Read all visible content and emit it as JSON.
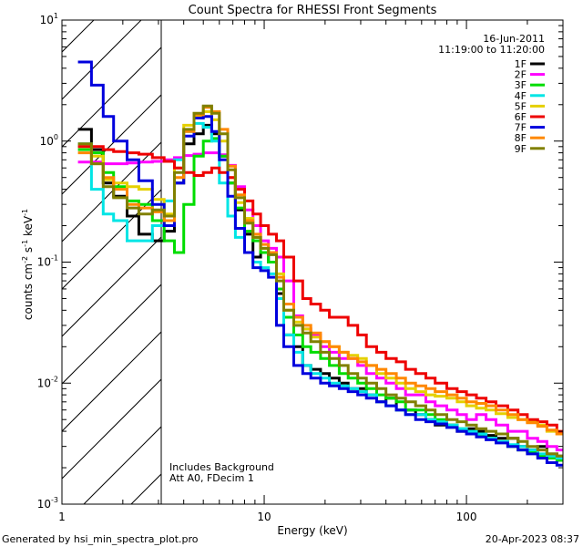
{
  "chart_data": {
    "type": "line",
    "title": "Count Spectra for RHESSI Front Segments",
    "xlabel": "Energy (keV)",
    "ylabel": "counts cm",
    "ylabel_sup1": "-2",
    "ylabel_mid": " s",
    "ylabel_sup2": "-1",
    "ylabel_end": " keV",
    "ylabel_sup3": "-1",
    "x_scale": "log",
    "y_scale": "log",
    "xlim": [
      1,
      300
    ],
    "ylim": [
      0.001,
      10
    ],
    "x_ticks": [
      {
        "value": 1,
        "label": "1"
      },
      {
        "value": 10,
        "label": "10"
      },
      {
        "value": 100,
        "label": "100"
      }
    ],
    "y_ticks": [
      {
        "value": 0.001,
        "mant": "10",
        "exp": "-3"
      },
      {
        "value": 0.01,
        "mant": "10",
        "exp": "-2"
      },
      {
        "value": 0.1,
        "mant": "10",
        "exp": "-1"
      },
      {
        "value": 1,
        "mant": "10",
        "exp": "0"
      },
      {
        "value": 10,
        "mant": "10",
        "exp": "1"
      }
    ],
    "hatched_region": [
      1,
      3
    ],
    "date": "16-Jun-2011",
    "time_range": "11:19:00 to 11:20:00",
    "annotations": [
      "Includes Background",
      "Att A0, FDecim 1"
    ],
    "energy_bins": [
      1.2,
      1.4,
      1.6,
      1.8,
      2.1,
      2.4,
      2.8,
      3.2,
      3.6,
      4.0,
      4.5,
      5.0,
      5.5,
      6.0,
      6.6,
      7.2,
      8.0,
      8.8,
      9.6,
      10.5,
      11.5,
      12.5,
      14,
      15.5,
      17,
      19,
      21,
      23.5,
      26,
      29,
      32,
      36,
      40,
      45,
      50,
      56,
      63,
      70,
      80,
      90,
      100,
      112,
      125,
      140,
      160,
      180,
      200,
      225,
      250,
      280,
      300
    ],
    "series": [
      {
        "name": "1F",
        "color": "#000000",
        "values": [
          1.25,
          0.85,
          0.45,
          0.35,
          0.24,
          0.17,
          0.15,
          0.18,
          0.45,
          0.95,
          1.15,
          1.35,
          1.15,
          0.75,
          0.45,
          0.27,
          0.17,
          0.11,
          0.12,
          0.1,
          0.055,
          0.025,
          0.02,
          0.014,
          0.013,
          0.012,
          0.011,
          0.01,
          0.009,
          0.009,
          0.008,
          0.007,
          0.0075,
          0.006,
          0.006,
          0.0055,
          0.005,
          0.0045,
          0.0045,
          0.004,
          0.0042,
          0.004,
          0.0037,
          0.0035,
          0.0035,
          0.003,
          0.0028,
          0.003,
          0.0026,
          0.0025
        ]
      },
      {
        "name": "2F",
        "color": "#ff00ff",
        "values": [
          0.67,
          0.67,
          0.65,
          0.65,
          0.66,
          0.67,
          0.68,
          0.7,
          0.73,
          0.76,
          0.78,
          0.8,
          0.8,
          0.77,
          0.63,
          0.42,
          0.27,
          0.2,
          0.15,
          0.13,
          0.11,
          0.07,
          0.036,
          0.028,
          0.025,
          0.02,
          0.018,
          0.016,
          0.016,
          0.014,
          0.012,
          0.011,
          0.01,
          0.009,
          0.008,
          0.008,
          0.007,
          0.0065,
          0.006,
          0.0055,
          0.005,
          0.0055,
          0.005,
          0.0045,
          0.004,
          0.004,
          0.0035,
          0.0033,
          0.003,
          0.0028
        ]
      },
      {
        "name": "3F",
        "color": "#00dd00",
        "values": [
          0.85,
          0.8,
          0.55,
          0.42,
          0.32,
          0.3,
          0.22,
          0.15,
          0.12,
          0.3,
          0.75,
          1.0,
          1.05,
          0.75,
          0.45,
          0.28,
          0.18,
          0.15,
          0.12,
          0.1,
          0.06,
          0.035,
          0.025,
          0.02,
          0.018,
          0.016,
          0.014,
          0.012,
          0.011,
          0.01,
          0.009,
          0.008,
          0.0075,
          0.007,
          0.006,
          0.006,
          0.0055,
          0.005,
          0.0045,
          0.0042,
          0.004,
          0.0037,
          0.0035,
          0.0033,
          0.003,
          0.0028,
          0.0027,
          0.0025,
          0.0024,
          0.0023
        ]
      },
      {
        "name": "4F",
        "color": "#00e5e5",
        "values": [
          0.95,
          0.4,
          0.25,
          0.22,
          0.15,
          0.15,
          0.2,
          0.32,
          0.7,
          1.2,
          1.4,
          1.3,
          1.0,
          0.45,
          0.24,
          0.16,
          0.12,
          0.1,
          0.09,
          0.08,
          0.05,
          0.025,
          0.018,
          0.014,
          0.012,
          0.011,
          0.01,
          0.0095,
          0.009,
          0.0085,
          0.008,
          0.007,
          0.0065,
          0.006,
          0.0055,
          0.0055,
          0.005,
          0.0048,
          0.0045,
          0.0042,
          0.004,
          0.0038,
          0.0035,
          0.0033,
          0.0031,
          0.003,
          0.0028,
          0.0026,
          0.0025,
          0.0024
        ]
      },
      {
        "name": "5F",
        "color": "#e5d000",
        "values": [
          0.9,
          0.75,
          0.48,
          0.45,
          0.42,
          0.4,
          0.33,
          0.25,
          0.6,
          1.35,
          1.6,
          1.75,
          1.5,
          1.0,
          0.5,
          0.31,
          0.23,
          0.16,
          0.13,
          0.12,
          0.08,
          0.04,
          0.032,
          0.028,
          0.024,
          0.022,
          0.02,
          0.018,
          0.017,
          0.016,
          0.014,
          0.012,
          0.011,
          0.01,
          0.009,
          0.0085,
          0.008,
          0.0078,
          0.0075,
          0.007,
          0.0065,
          0.0062,
          0.006,
          0.0056,
          0.0052,
          0.005,
          0.0048,
          0.0045,
          0.004,
          0.0038
        ]
      },
      {
        "name": "6F",
        "color": "#ee0000",
        "values": [
          0.9,
          0.9,
          0.85,
          0.82,
          0.8,
          0.78,
          0.73,
          0.68,
          0.6,
          0.55,
          0.52,
          0.55,
          0.6,
          0.55,
          0.5,
          0.4,
          0.32,
          0.25,
          0.2,
          0.17,
          0.15,
          0.11,
          0.07,
          0.05,
          0.045,
          0.04,
          0.035,
          0.035,
          0.03,
          0.025,
          0.02,
          0.018,
          0.016,
          0.015,
          0.013,
          0.012,
          0.011,
          0.01,
          0.009,
          0.0085,
          0.008,
          0.0075,
          0.007,
          0.0065,
          0.006,
          0.0055,
          0.005,
          0.0048,
          0.0045,
          0.004
        ]
      },
      {
        "name": "7F",
        "color": "#0000dd",
        "values": [
          4.5,
          2.9,
          1.6,
          1.0,
          0.7,
          0.47,
          0.3,
          0.2,
          0.45,
          1.1,
          1.55,
          1.6,
          1.2,
          0.7,
          0.35,
          0.19,
          0.12,
          0.09,
          0.085,
          0.075,
          0.03,
          0.02,
          0.014,
          0.012,
          0.011,
          0.01,
          0.0095,
          0.009,
          0.0085,
          0.008,
          0.0075,
          0.007,
          0.0065,
          0.006,
          0.0055,
          0.005,
          0.0048,
          0.0046,
          0.0043,
          0.004,
          0.0038,
          0.0036,
          0.0034,
          0.0032,
          0.003,
          0.0028,
          0.0026,
          0.0024,
          0.0022,
          0.0021
        ]
      },
      {
        "name": "8F",
        "color": "#ff8800",
        "values": [
          0.8,
          0.65,
          0.5,
          0.4,
          0.3,
          0.28,
          0.26,
          0.22,
          0.5,
          1.2,
          1.65,
          1.9,
          1.75,
          1.25,
          0.62,
          0.36,
          0.22,
          0.17,
          0.14,
          0.12,
          0.075,
          0.045,
          0.035,
          0.03,
          0.026,
          0.022,
          0.02,
          0.018,
          0.016,
          0.015,
          0.014,
          0.013,
          0.012,
          0.011,
          0.01,
          0.0095,
          0.009,
          0.0085,
          0.008,
          0.0075,
          0.007,
          0.0068,
          0.0065,
          0.006,
          0.0055,
          0.005,
          0.0047,
          0.0044,
          0.0041,
          0.0038
        ]
      },
      {
        "name": "9F",
        "color": "#808000",
        "values": [
          0.95,
          0.65,
          0.42,
          0.34,
          0.28,
          0.25,
          0.27,
          0.24,
          0.55,
          1.25,
          1.7,
          1.95,
          1.7,
          1.15,
          0.58,
          0.34,
          0.21,
          0.16,
          0.13,
          0.115,
          0.07,
          0.04,
          0.03,
          0.026,
          0.022,
          0.018,
          0.016,
          0.014,
          0.012,
          0.011,
          0.01,
          0.009,
          0.008,
          0.0075,
          0.007,
          0.0065,
          0.006,
          0.0055,
          0.005,
          0.0048,
          0.0045,
          0.0042,
          0.004,
          0.0038,
          0.0035,
          0.0033,
          0.003,
          0.0028,
          0.0026,
          0.0025
        ]
      }
    ]
  },
  "footer": {
    "generated_by": "Generated by hsi_min_spectra_plot.pro",
    "timestamp": "20-Apr-2023 08:37"
  }
}
